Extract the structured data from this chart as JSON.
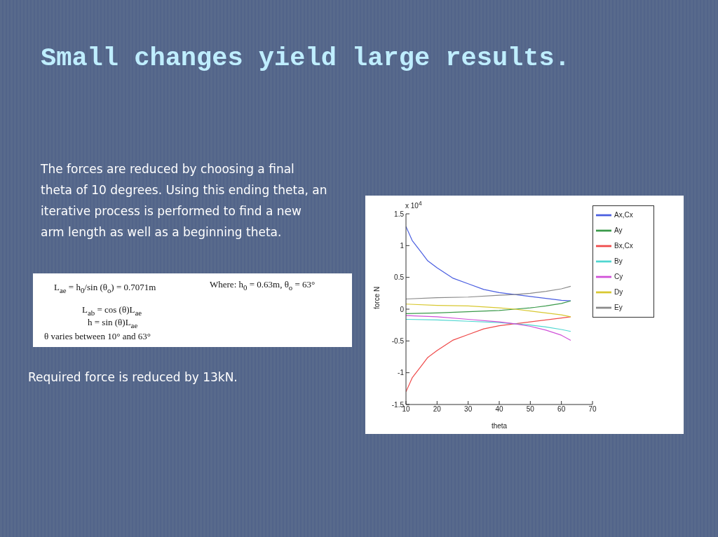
{
  "chart_data": {
    "type": "line",
    "title": "Small changes yield large results.",
    "xlabel": "theta",
    "ylabel": "force N",
    "annotations": [
      "The forces are reduced by choosing a final theta of 10 degrees.  Using this ending theta, an iterative process is performed to find a new arm length as well as a beginning theta.",
      "L$_{ae}$ = h$_{0}$/sin (θ$_{o}$) = 0.7071m",
      "Where: h$_{0}$ = 0.63m,  θ$_{o}$ = 63°",
      "L$_{ab}$ = cos (θ)L$_{ae}$",
      "h = sin (θ)L$_{ae}$",
      "θ varies between 10° and 63°",
      "Required force is reduced by 13kN.",
      "x 10$^{4}$"
    ],
    "xlim": [
      10,
      70
    ],
    "xticks": [
      10,
      20,
      30,
      40,
      50,
      60,
      70
    ],
    "ylim": [
      -1.5,
      1.5
    ],
    "yticks": [
      -1.5,
      -1,
      -0.5,
      0,
      0.5,
      1,
      1.5
    ],
    "legend": "top right",
    "marker": "none",
    "line_style": "solid",
    "series": [
      {
        "name": "Ax,Cx",
        "color": "#4a5ee0",
        "x": [
          10,
          12,
          15,
          17,
          20,
          25,
          30,
          35,
          40,
          45,
          50,
          55,
          60,
          63
        ],
        "values": [
          1.3,
          1.08,
          0.89,
          0.76,
          0.65,
          0.49,
          0.4,
          0.31,
          0.26,
          0.23,
          0.2,
          0.17,
          0.14,
          0.13
        ]
      },
      {
        "name": "Ay",
        "color": "#3a9a4a",
        "x": [
          10,
          20,
          30,
          40,
          45,
          50,
          55,
          60,
          63
        ],
        "values": [
          -0.07,
          -0.06,
          -0.04,
          -0.02,
          0,
          0.02,
          0.05,
          0.09,
          0.13
        ]
      },
      {
        "name": "Bx,Cx",
        "color": "#ef4a4a",
        "x": [
          10,
          12,
          15,
          17,
          20,
          25,
          30,
          35,
          40,
          45,
          50,
          55,
          60,
          63
        ],
        "values": [
          -1.3,
          -1.08,
          -0.89,
          -0.76,
          -0.65,
          -0.49,
          -0.4,
          -0.31,
          -0.26,
          -0.23,
          -0.2,
          -0.17,
          -0.14,
          -0.12
        ]
      },
      {
        "name": "By",
        "color": "#4fd6d0",
        "x": [
          10,
          20,
          30,
          40,
          45,
          50,
          55,
          60,
          63
        ],
        "values": [
          -0.16,
          -0.17,
          -0.19,
          -0.21,
          -0.23,
          -0.25,
          -0.28,
          -0.32,
          -0.35
        ]
      },
      {
        "name": "Cy",
        "color": "#d050d8",
        "x": [
          10,
          20,
          30,
          40,
          45,
          50,
          55,
          60,
          63
        ],
        "values": [
          -0.1,
          -0.12,
          -0.16,
          -0.2,
          -0.23,
          -0.27,
          -0.33,
          -0.41,
          -0.49
        ]
      },
      {
        "name": "Dy",
        "color": "#d8c830",
        "x": [
          10,
          20,
          30,
          40,
          45,
          50,
          55,
          60,
          63
        ],
        "values": [
          0.08,
          0.06,
          0.05,
          0.02,
          0,
          -0.03,
          -0.06,
          -0.09,
          -0.12
        ]
      },
      {
        "name": "Ey",
        "color": "#8a8a8a",
        "x": [
          10,
          20,
          30,
          40,
          45,
          50,
          55,
          60,
          63
        ],
        "values": [
          0.16,
          0.18,
          0.19,
          0.22,
          0.23,
          0.25,
          0.28,
          0.32,
          0.36
        ]
      }
    ]
  }
}
